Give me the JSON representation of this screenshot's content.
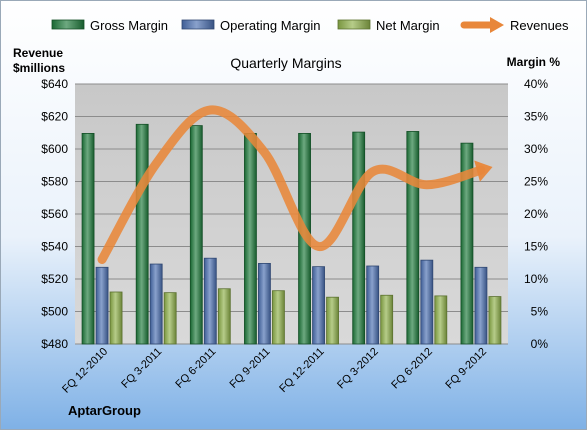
{
  "chart_data": {
    "type": "bar",
    "title": "Quarterly Margins",
    "left_axis_title": [
      "Revenue",
      "$millions"
    ],
    "right_axis_title": "Margin %",
    "footer_label": "AptarGroup",
    "categories": [
      "FQ 12-2010",
      "FQ 3-2011",
      "FQ 6-2011",
      "FQ 9-2011",
      "FQ 12-2011",
      "FQ 3-2012",
      "FQ 6-2012",
      "FQ 9-2012"
    ],
    "series": [
      {
        "name": "Gross Margin",
        "axis": "right",
        "type": "bar",
        "color": "#1e7a3c",
        "values": [
          32.4,
          33.8,
          33.6,
          32.4,
          32.4,
          32.6,
          32.7,
          30.9
        ]
      },
      {
        "name": "Operating Margin",
        "axis": "right",
        "type": "bar",
        "color": "#4a6fb0",
        "values": [
          11.8,
          12.3,
          13.2,
          12.4,
          11.9,
          12.0,
          12.9,
          11.8
        ]
      },
      {
        "name": "Net Margin",
        "axis": "right",
        "type": "bar",
        "color": "#8eb04a",
        "values": [
          8.0,
          7.9,
          8.5,
          8.2,
          7.2,
          7.5,
          7.4,
          7.3
        ]
      },
      {
        "name": "Revenues",
        "axis": "left",
        "type": "line",
        "color": "#e8873a",
        "values": [
          532,
          591,
          624,
          598,
          540,
          586,
          578,
          587
        ]
      }
    ],
    "left_axis": {
      "min": 480,
      "max": 640,
      "step": 20,
      "tick_labels": [
        "$480",
        "$500",
        "$520",
        "$540",
        "$560",
        "$580",
        "$600",
        "$620",
        "$640"
      ]
    },
    "right_axis": {
      "min": 0,
      "max": 40,
      "step": 5,
      "tick_labels": [
        "0%",
        "5%",
        "10%",
        "15%",
        "20%",
        "25%",
        "30%",
        "35%",
        "40%"
      ]
    },
    "grid": true,
    "legend_position": "top"
  }
}
